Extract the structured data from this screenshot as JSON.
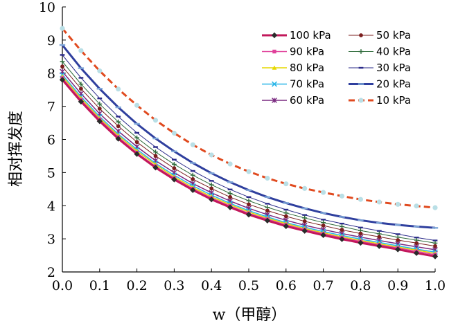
{
  "chart_data": {
    "type": "line",
    "xlabel": "w（甲醇）",
    "ylabel": "相对挥发度",
    "xlim": [
      0.0,
      1.0
    ],
    "ylim": [
      2,
      10
    ],
    "x_ticks": [
      "0.0",
      "0.1",
      "0.2",
      "0.3",
      "0.4",
      "0.5",
      "0.6",
      "0.7",
      "0.8",
      "0.9",
      "1.0"
    ],
    "y_ticks": [
      "2",
      "3",
      "4",
      "5",
      "6",
      "7",
      "8",
      "9",
      "10"
    ],
    "grid": false,
    "legend_placement": "top-right",
    "x": [
      0.0,
      0.05,
      0.1,
      0.15,
      0.2,
      0.25,
      0.3,
      0.35,
      0.4,
      0.45,
      0.5,
      0.55,
      0.6,
      0.65,
      0.7,
      0.75,
      0.8,
      0.85,
      0.9,
      0.95,
      1.0
    ],
    "series": [
      {
        "name": "100 kPa",
        "color": "#c2185b",
        "marker": "diamond",
        "marker_color": "#2b2b2b",
        "width": 3,
        "values": [
          7.8,
          7.14,
          6.55,
          6.02,
          5.56,
          5.15,
          4.79,
          4.47,
          4.19,
          3.95,
          3.73,
          3.55,
          3.38,
          3.24,
          3.11,
          2.99,
          2.88,
          2.78,
          2.68,
          2.57,
          2.47
        ]
      },
      {
        "name": "50 kPa",
        "color": "#7b1e1e",
        "marker": "circle",
        "width": 1,
        "values": [
          8.2,
          7.53,
          6.93,
          6.4,
          5.92,
          5.5,
          5.13,
          4.8,
          4.52,
          4.26,
          4.04,
          3.85,
          3.68,
          3.53,
          3.4,
          3.27,
          3.16,
          3.06,
          2.96,
          2.87,
          2.78
        ]
      },
      {
        "name": "90 kPa",
        "color": "#e0409a",
        "marker": "square",
        "width": 1.5,
        "values": [
          7.85,
          7.19,
          6.6,
          6.07,
          5.6,
          5.19,
          4.83,
          4.51,
          4.23,
          3.99,
          3.77,
          3.59,
          3.42,
          3.28,
          3.15,
          3.03,
          2.92,
          2.82,
          2.72,
          2.62,
          2.52
        ]
      },
      {
        "name": "40 kPa",
        "color": "#2e6b3a",
        "marker": "plus",
        "width": 1,
        "values": [
          8.35,
          7.67,
          7.07,
          6.53,
          6.05,
          5.62,
          5.25,
          4.92,
          4.63,
          4.37,
          4.15,
          3.95,
          3.78,
          3.63,
          3.49,
          3.37,
          3.25,
          3.15,
          3.05,
          2.96,
          2.87
        ]
      },
      {
        "name": "80 kPa",
        "color": "#e6d800",
        "marker": "triangle",
        "width": 1.5,
        "values": [
          7.9,
          7.24,
          6.64,
          6.12,
          5.65,
          5.24,
          4.87,
          4.55,
          4.27,
          4.03,
          3.81,
          3.62,
          3.46,
          3.31,
          3.18,
          3.06,
          2.95,
          2.85,
          2.75,
          2.66,
          2.56
        ]
      },
      {
        "name": "30 kPa",
        "color": "#2b2b8a",
        "marker": "dash",
        "width": 1,
        "values": [
          8.55,
          7.86,
          7.24,
          6.69,
          6.2,
          5.77,
          5.39,
          5.05,
          4.75,
          4.49,
          4.26,
          4.06,
          3.88,
          3.72,
          3.58,
          3.46,
          3.34,
          3.24,
          3.14,
          3.04,
          2.95
        ]
      },
      {
        "name": "70 kPa",
        "color": "#29b6e8",
        "marker": "x",
        "width": 1.5,
        "values": [
          7.95,
          7.29,
          6.69,
          6.16,
          5.7,
          5.28,
          4.92,
          4.6,
          4.32,
          4.07,
          3.85,
          3.66,
          3.49,
          3.35,
          3.22,
          3.1,
          2.99,
          2.89,
          2.79,
          2.69,
          2.6
        ]
      },
      {
        "name": "20 kPa",
        "color": "#2f3f9e",
        "marker": "dash",
        "marker_color": "#7fa7d8",
        "width": 3,
        "values": [
          8.85,
          8.15,
          7.53,
          6.97,
          6.47,
          6.03,
          5.64,
          5.29,
          4.98,
          4.71,
          4.47,
          4.26,
          4.08,
          3.92,
          3.78,
          3.66,
          3.56,
          3.48,
          3.42,
          3.37,
          3.33
        ]
      },
      {
        "name": "60 kPa",
        "color": "#7a2a80",
        "marker": "star",
        "width": 1.5,
        "values": [
          8.05,
          7.38,
          6.78,
          6.25,
          5.78,
          5.36,
          5.0,
          4.67,
          4.39,
          4.14,
          3.92,
          3.73,
          3.56,
          3.41,
          3.28,
          3.16,
          3.05,
          2.95,
          2.85,
          2.76,
          2.67
        ]
      },
      {
        "name": "10 kPa",
        "color": "#e04a1f",
        "marker": "circle",
        "marker_color": "#b9dfe6",
        "width": 3,
        "dash": "9,5",
        "values": [
          9.35,
          8.68,
          8.07,
          7.52,
          7.03,
          6.58,
          6.19,
          5.84,
          5.53,
          5.26,
          5.03,
          4.83,
          4.66,
          4.52,
          4.4,
          4.29,
          4.19,
          4.11,
          4.04,
          3.99,
          3.94
        ]
      }
    ]
  }
}
